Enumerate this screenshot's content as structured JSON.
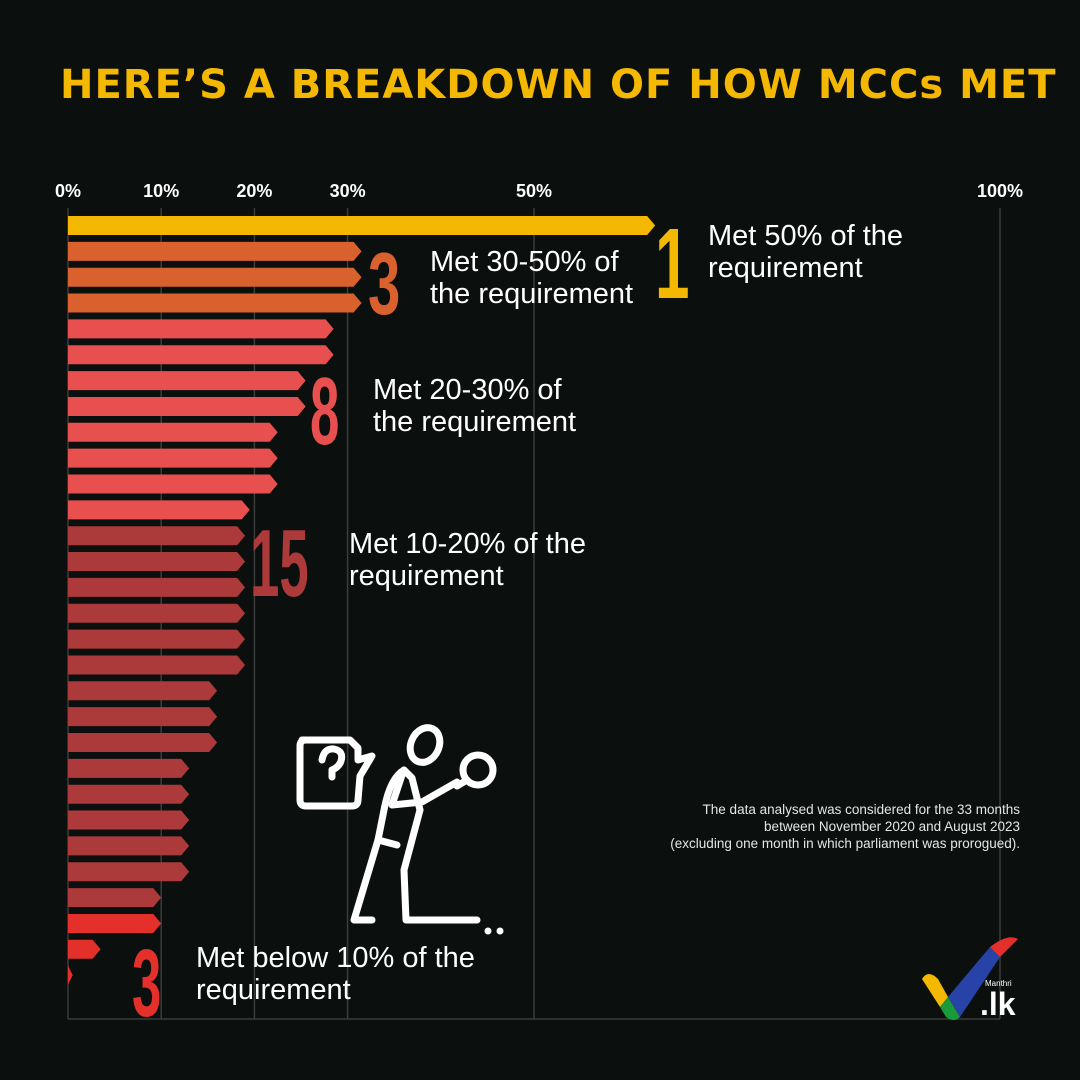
{
  "title": "HERE’S A BREAKDOWN OF HOW MCCs MET",
  "chart_data": {
    "type": "bar",
    "orientation": "horizontal",
    "xlabel": "",
    "ylabel": "",
    "xlim": [
      0,
      100
    ],
    "x_ticks": [
      {
        "value": 0,
        "label": "0%"
      },
      {
        "value": 10,
        "label": "10%"
      },
      {
        "value": 20,
        "label": "20%"
      },
      {
        "value": 30,
        "label": "30%"
      },
      {
        "value": 50,
        "label": "50%"
      },
      {
        "value": 100,
        "label": "100%"
      }
    ],
    "grid": "vertical lines at ticks",
    "values": [
      63,
      31.5,
      31.5,
      31.5,
      28.5,
      28.5,
      25.5,
      25.5,
      22.5,
      22.5,
      22.5,
      19.5,
      19,
      19,
      19,
      19,
      19,
      19,
      16,
      16,
      16,
      13,
      13,
      13,
      13,
      13,
      10,
      10,
      3.5,
      0.5
    ],
    "group_of_bar": [
      0,
      1,
      1,
      1,
      2,
      2,
      2,
      2,
      2,
      2,
      2,
      2,
      3,
      3,
      3,
      3,
      3,
      3,
      3,
      3,
      3,
      3,
      3,
      3,
      3,
      3,
      3,
      4,
      4,
      4
    ],
    "groups": [
      {
        "count": "1",
        "lines": [
          "Met 50% of the",
          "requirement"
        ],
        "color": "#f5b800"
      },
      {
        "count": "3",
        "lines": [
          "Met 30-50% of",
          "the requirement"
        ],
        "color": "#d9612e"
      },
      {
        "count": "8",
        "lines": [
          "Met 20-30% of",
          "the requirement"
        ],
        "color": "#e85050"
      },
      {
        "count": "15",
        "lines": [
          "Met 10-20% of the",
          "requirement"
        ],
        "color": "#ac3a3a"
      },
      {
        "count": "3",
        "lines": [
          "Met below 10% of the",
          "requirement"
        ],
        "color": "#e3302a"
      }
    ]
  },
  "note": {
    "lines": [
      "The data analysed was considered for the 33 months",
      "between November 2020 and August 2023",
      "(excluding one month in which parliament was prorogued)."
    ]
  },
  "illustration": {
    "icon": "person-holding-magnifier-with-question-sign-icon"
  },
  "logo": {
    "brand": "Manthri",
    "tld": ".lk",
    "colors": [
      "#f5b800",
      "#1a9a3a",
      "#2743a8",
      "#e3302a"
    ]
  }
}
